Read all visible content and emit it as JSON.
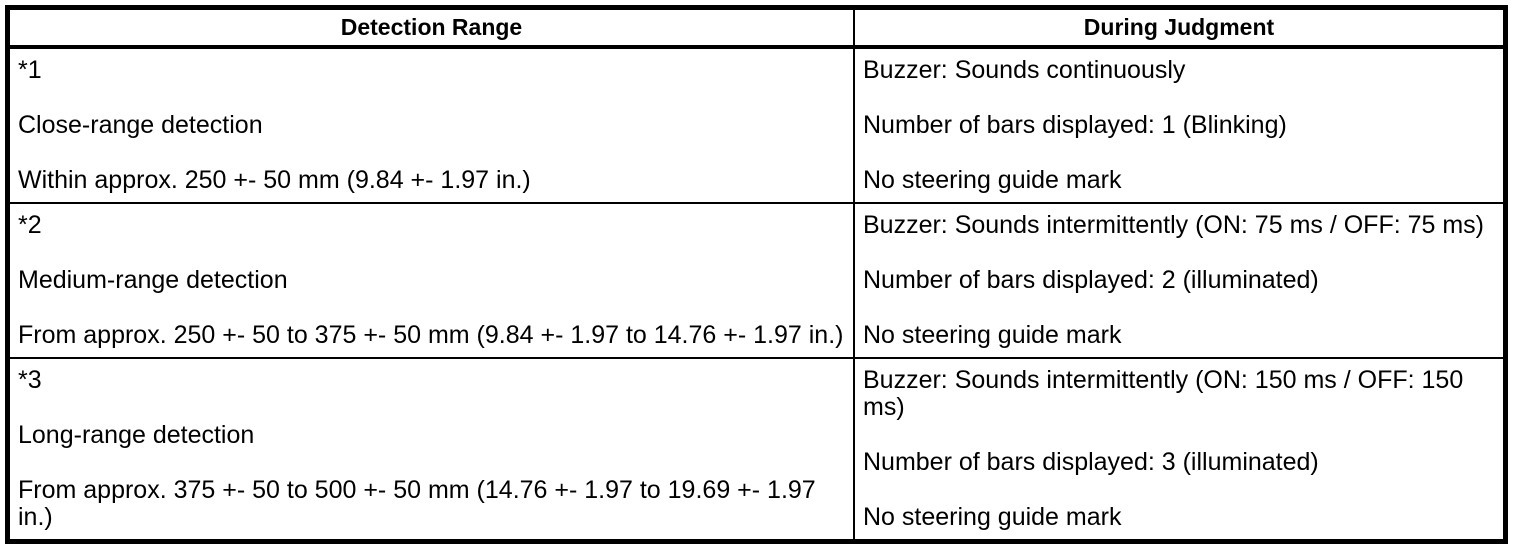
{
  "table": {
    "headers": {
      "detection": "Detection Range",
      "judgment": "During Judgment"
    },
    "rows": [
      {
        "detection": {
          "paras": [
            "*1",
            "Close-range detection",
            "Within approx. 250 +- 50 mm (9.84 +- 1.97 in.)"
          ]
        },
        "judgment": {
          "paras": [
            "Buzzer: Sounds continuously",
            "Number of bars displayed: 1 (Blinking)",
            "No steering guide mark"
          ]
        }
      },
      {
        "detection": {
          "paras": [
            "*2",
            "Medium-range detection",
            "From approx. 250 +- 50 to 375 +- 50 mm (9.84 +- 1.97 to 14.76 +- 1.97 in.)"
          ]
        },
        "judgment": {
          "paras": [
            "Buzzer: Sounds intermittently (ON: 75 ms / OFF: 75 ms)",
            "Number of bars displayed: 2 (illuminated)",
            "No steering guide mark"
          ]
        }
      },
      {
        "detection": {
          "paras": [
            "*3",
            "Long-range detection",
            "From approx. 375 +- 50 to 500 +- 50 mm (14.76 +- 1.97 to 19.69 +- 1.97 in.)"
          ]
        },
        "judgment": {
          "paras": [
            "Buzzer: Sounds intermittently (ON: 150 ms / OFF: 150 ms)",
            "Number of bars displayed: 3 (illuminated)",
            "No steering guide mark"
          ]
        }
      }
    ]
  },
  "colors": {
    "border": "#000000",
    "background": "#ffffff",
    "text": "#000000"
  }
}
